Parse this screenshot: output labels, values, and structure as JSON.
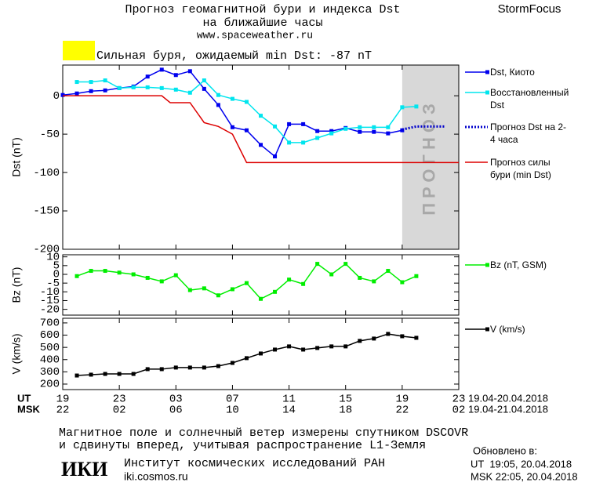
{
  "header": {
    "title_line1": "Прогноз геомагнитной бури и индекса Dst",
    "title_line2": "на ближайшие часы",
    "url": "www.spaceweather.ru",
    "brand": "StormFocus",
    "storm_label": "Сильная буря, ожидаемый min Dst: -87 nT"
  },
  "chart_data": [
    {
      "type": "line",
      "ylabel": "Dst (nT)",
      "xlim": [
        0,
        28
      ],
      "ylim": [
        -200,
        40
      ],
      "yticks": [
        0,
        -50,
        -100,
        -150,
        -200
      ],
      "forecast_band": {
        "x": [
          24,
          28
        ],
        "label": "ПРОГНОЗ"
      },
      "series": [
        {
          "name": "Dst, Киото",
          "color": "#0000ee",
          "marker": "square",
          "x": [
            0,
            1,
            2,
            3,
            4,
            5,
            6,
            7,
            8,
            9,
            10,
            11,
            12,
            13,
            14,
            15,
            16,
            17,
            18,
            19,
            20,
            21,
            22,
            23,
            24
          ],
          "values": [
            1,
            3,
            6,
            7,
            10,
            12,
            25,
            34,
            27,
            32,
            9,
            -12,
            -41,
            -45,
            -64,
            -79,
            -37,
            -37,
            -46,
            -46,
            -42,
            -47,
            -47,
            -49,
            -45
          ]
        },
        {
          "name": "Восстановленный Dst",
          "color": "#00e5ee",
          "marker": "square",
          "x": [
            1,
            2,
            3,
            4,
            5,
            6,
            7,
            8,
            9,
            10,
            11,
            12,
            13,
            14,
            15,
            16,
            17,
            18,
            19,
            20,
            21,
            22,
            23,
            24,
            25
          ],
          "values": [
            18,
            18,
            20,
            10,
            11,
            11,
            10,
            8,
            4,
            20,
            1,
            -4,
            -8,
            -26,
            -40,
            -61,
            -61,
            -55,
            -49,
            -43,
            -41,
            -41,
            -41,
            -15,
            -14
          ]
        },
        {
          "name": "Прогноз Dst на 2-4 часа",
          "color": "#0000cc",
          "dash": "dotted",
          "x": [
            24,
            25,
            26,
            27
          ],
          "values": [
            -44,
            -40,
            -40,
            -40
          ]
        },
        {
          "name": "Прогноз силы бури (min Dst)",
          "color": "#dd0000",
          "x": [
            0,
            7,
            7.6,
            9,
            10,
            11,
            12,
            13,
            28
          ],
          "values": [
            0,
            0,
            -9,
            -9,
            -35,
            -40,
            -50,
            -87,
            -87
          ]
        }
      ]
    },
    {
      "type": "line",
      "ylabel": "Bz (nT)",
      "xlim": [
        0,
        28
      ],
      "ylim": [
        -23.3,
        11.2
      ],
      "yticks": [
        10,
        5,
        0,
        -5,
        -10,
        -15,
        -20
      ],
      "series": [
        {
          "name": "Bz (nT, GSM)",
          "color": "#00ee00",
          "marker": "square",
          "x": [
            1,
            2,
            3,
            4,
            5,
            6,
            7,
            8,
            9,
            10,
            11,
            12,
            13,
            14,
            15,
            16,
            17,
            18,
            19,
            20,
            21,
            22,
            23,
            24,
            25
          ],
          "values": [
            -1,
            2,
            2,
            1,
            0,
            -2,
            -4,
            -0.5,
            -9,
            -8,
            -12,
            -8.5,
            -5,
            -14,
            -10,
            -3,
            -5.5,
            6,
            0,
            6,
            -2,
            -4,
            2,
            -4.5,
            -1
          ]
        }
      ]
    },
    {
      "type": "line",
      "ylabel": "V (km/s)",
      "xlim": [
        0,
        28
      ],
      "ylim": [
        155,
        738
      ],
      "yticks": [
        700,
        600,
        500,
        400,
        300,
        200
      ],
      "xaxis_name": "UT",
      "xaxis2_name": "MSK",
      "date_range": "19.04-20.04.2018",
      "date_range2": "19.04-21.04.2018",
      "xticks": [
        {
          "value": 0,
          "label": "19"
        },
        {
          "value": 4,
          "label": "23"
        },
        {
          "value": 8,
          "label": "03"
        },
        {
          "value": 12,
          "label": "07"
        },
        {
          "value": 16,
          "label": "11"
        },
        {
          "value": 20,
          "label": "15"
        },
        {
          "value": 24,
          "label": "19"
        },
        {
          "value": 28,
          "label": "23"
        }
      ],
      "xticks2": [
        "22",
        "02",
        "06",
        "10",
        "14",
        "18",
        "22",
        "02"
      ],
      "series": [
        {
          "name": "V (km/s)",
          "color": "#000000",
          "marker": "square",
          "x": [
            1,
            2,
            3,
            4,
            5,
            6,
            7,
            8,
            9,
            10,
            11,
            12,
            13,
            14,
            15,
            16,
            17,
            18,
            19,
            20,
            21,
            22,
            23,
            24,
            25
          ],
          "values": [
            270,
            277,
            283,
            283,
            283,
            322,
            322,
            335,
            335,
            335,
            347,
            373,
            412,
            450,
            482,
            508,
            482,
            495,
            508,
            508,
            553,
            572,
            610,
            591,
            578
          ]
        }
      ]
    }
  ],
  "footer": {
    "note_line1": "Магнитное поле и солнечный ветер измерены спутником DSCOVR",
    "note_line2": "и сдвинуты вперед, учитывая распространение L1-Земля",
    "logo": "ИКИ",
    "institute": "Институт космических исследований РАН",
    "site": "iki.cosmos.ru",
    "updated": "Обновлено в:",
    "updated_ut": "UT  19:05, 20.04.2018",
    "updated_msk": "MSK 22:05, 20.04.2018"
  }
}
